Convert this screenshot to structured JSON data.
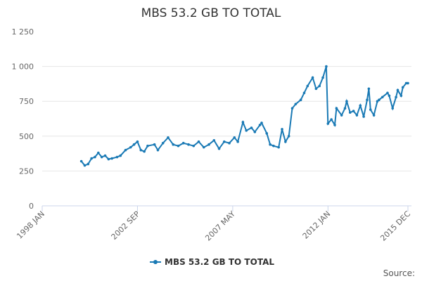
{
  "chart_data": {
    "type": "line",
    "title": "MBS 53.2 GB TO TOTAL",
    "source": "Source:",
    "x": [
      "1999-12",
      "2000-02",
      "2000-04",
      "2000-06",
      "2000-08",
      "2000-10",
      "2000-12",
      "2001-02",
      "2001-04",
      "2001-06",
      "2001-09",
      "2001-11",
      "2002-02",
      "2002-05",
      "2002-07",
      "2002-09",
      "2002-11",
      "2003-01",
      "2003-03",
      "2003-07",
      "2003-09",
      "2003-12",
      "2004-03",
      "2004-06",
      "2004-09",
      "2004-12",
      "2005-03",
      "2005-06",
      "2005-09",
      "2005-12",
      "2006-03",
      "2006-06",
      "2006-09",
      "2006-12",
      "2007-03",
      "2007-06",
      "2007-08",
      "2007-11",
      "2008-01",
      "2008-04",
      "2008-06",
      "2008-09",
      "2008-10",
      "2009-01",
      "2009-03",
      "2009-05",
      "2009-08",
      "2009-10",
      "2009-12",
      "2010-02",
      "2010-04",
      "2010-06",
      "2010-09",
      "2010-11",
      "2011-01",
      "2011-04",
      "2011-06",
      "2011-08",
      "2011-10",
      "2011-12",
      "2012-01",
      "2012-03",
      "2012-05",
      "2012-06",
      "2012-09",
      "2012-11",
      "2012-12",
      "2013-02",
      "2013-04",
      "2013-06",
      "2013-08",
      "2013-10",
      "2013-12",
      "2014-01",
      "2014-02",
      "2014-04",
      "2014-06",
      "2014-07",
      "2014-09",
      "2014-12",
      "2015-01",
      "2015-03",
      "2015-05",
      "2015-06",
      "2015-08",
      "2015-09",
      "2015-11",
      "2015-12"
    ],
    "series": [
      {
        "name": "MBS 53.2 GB TO TOTAL",
        "color": "#1a7ab5",
        "values": [
          320,
          290,
          300,
          340,
          350,
          380,
          350,
          360,
          335,
          340,
          350,
          360,
          400,
          420,
          440,
          460,
          400,
          390,
          430,
          440,
          400,
          450,
          490,
          440,
          430,
          450,
          440,
          430,
          460,
          420,
          440,
          470,
          410,
          460,
          450,
          490,
          460,
          600,
          540,
          560,
          530,
          580,
          595,
          520,
          440,
          430,
          420,
          550,
          460,
          500,
          700,
          730,
          760,
          810,
          860,
          920,
          840,
          860,
          920,
          1000,
          590,
          620,
          580,
          700,
          650,
          700,
          750,
          670,
          680,
          650,
          720,
          640,
          760,
          840,
          690,
          650,
          750,
          760,
          780,
          810,
          790,
          700,
          780,
          830,
          790,
          850,
          880,
          880
        ]
      }
    ],
    "xlim": [
      "1998-01",
      "2015-12"
    ],
    "xticks": [
      {
        "value": "1998-01",
        "label": "1998 JAN"
      },
      {
        "value": "2002-09",
        "label": "2002 SEP"
      },
      {
        "value": "2007-05",
        "label": "2007 MAY"
      },
      {
        "value": "2012-01",
        "label": "2012 JAN"
      },
      {
        "value": "2015-12",
        "label": "2015 DEC"
      }
    ],
    "ylim": [
      0,
      1250
    ],
    "yticks": [
      0,
      250,
      500,
      750,
      1000,
      {
        "value": 1250,
        "label": "1 250"
      },
      {
        "value": 1000,
        "label": "1 000"
      }
    ],
    "grid": true
  }
}
